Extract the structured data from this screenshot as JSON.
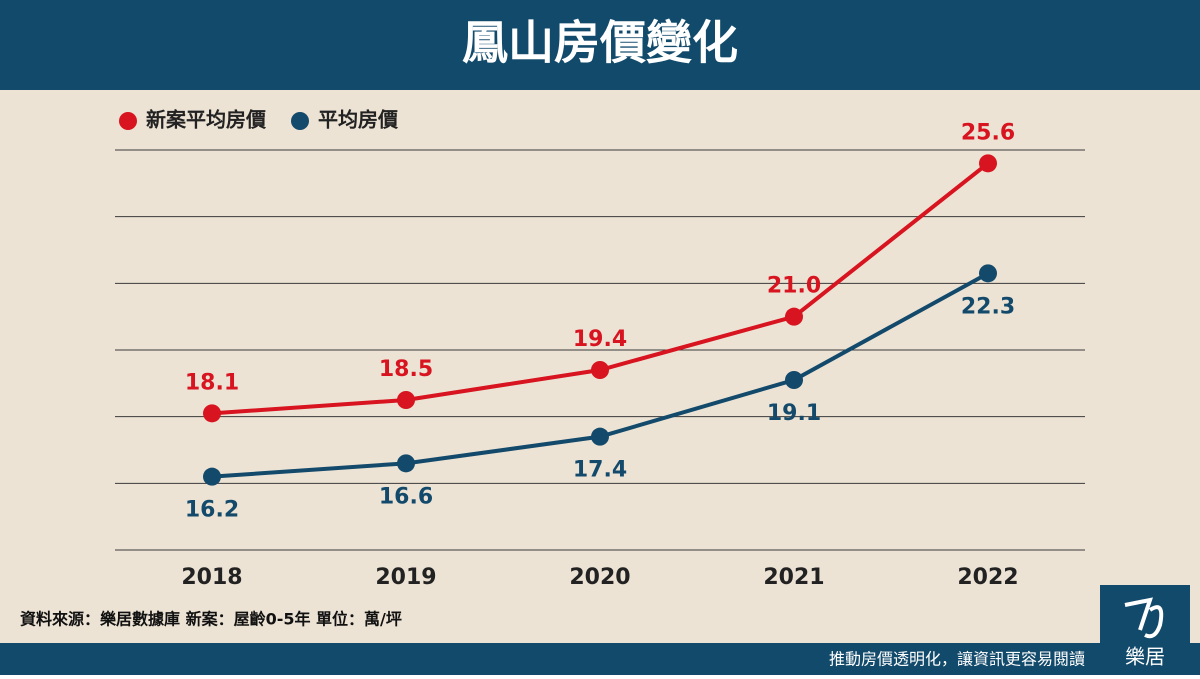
{
  "chart_data": {
    "type": "line",
    "title": "鳳山房價變化",
    "categories": [
      "2018",
      "2019",
      "2020",
      "2021",
      "2022"
    ],
    "series": [
      {
        "name": "新案平均房價",
        "color": "#d7141f",
        "values": [
          18.1,
          18.5,
          19.4,
          21.0,
          25.6
        ],
        "value_labels": [
          "18.1",
          "18.5",
          "19.4",
          "21.0",
          "25.6"
        ]
      },
      {
        "name": "平均房價",
        "color": "#134a6b",
        "values": [
          16.2,
          16.6,
          17.4,
          19.1,
          22.3
        ],
        "value_labels": [
          "16.2",
          "16.6",
          "17.4",
          "19.1",
          "22.3"
        ]
      }
    ],
    "ylim": [
      14,
      26
    ],
    "yticks": [
      14,
      16,
      18,
      20,
      22,
      24,
      26
    ],
    "grid": true,
    "legend": "top-left",
    "source": "資料來源：樂居數據庫  新案：屋齡0-5年  單位：萬/坪",
    "footer": "推動房價透明化，讓資訊更容易閱讀",
    "logo": "樂居"
  }
}
